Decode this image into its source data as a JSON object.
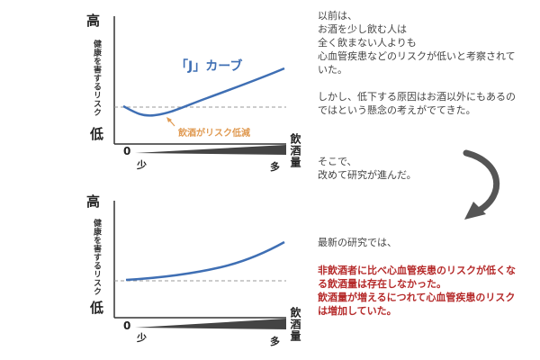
{
  "chart1": {
    "high_label": "高",
    "low_label": "低",
    "ylabel": "健康を害するリスク",
    "xlabel": "飲酒量",
    "zero": "0",
    "few": "少",
    "many": "多",
    "curve_label": "「J」カーブ",
    "annotation": "飲酒がリスク低減",
    "curve_color": "#3f6fb4",
    "annotation_color": "#e09a52"
  },
  "chart2": {
    "high_label": "高",
    "low_label": "低",
    "ylabel": "健康を害するリスク",
    "xlabel": "飲酒量",
    "zero": "0",
    "few": "少",
    "many": "多",
    "curve_color": "#3f6fb4"
  },
  "text": {
    "para1": "以前は、\nお酒を少し飲む人は\n全く飲まない人よりも\n心血管疾患などのリスクが低いと考察されていた。",
    "para2": "しかし、低下する原因はお酒以外にもあるのではという懸念の考えがでてきた。",
    "para3": "そこで、\n改めて研究が進んだ。",
    "para4": "最新の研究では、",
    "para5": "非飲酒者に比べ心血管疾患のリスクが低くなる飲酒量は存在しなかった。\n飲酒量が増えるにつれて心血管疾患のリスクは増加していた。",
    "accent_red": "#b52a2a",
    "arrow_color": "#555555"
  }
}
